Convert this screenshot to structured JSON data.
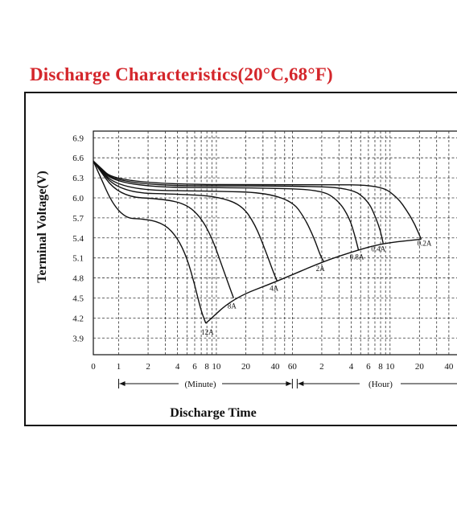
{
  "chart_data": {
    "type": "line",
    "title": "Discharge Characteristics(20°C,68°F)",
    "xlabel": "Discharge Time",
    "ylabel": "Terminal Voltage(V)",
    "x_scale": "log",
    "x_unit": "minutes",
    "xlim": [
      0.55,
      2800
    ],
    "ylim": [
      3.65,
      7.0
    ],
    "y_ticks": [
      "6.9",
      "6.6",
      "6.3",
      "6.0",
      "5.7",
      "5.4",
      "5.1",
      "4.8",
      "4.5",
      "4.2",
      "3.9"
    ],
    "minute_ticks": [
      "0",
      "1",
      "2",
      "4",
      "6",
      "8",
      "10",
      "20",
      "40",
      "60"
    ],
    "hour_ticks": [
      "2",
      "4",
      "6",
      "8",
      "10",
      "20",
      "40"
    ],
    "minute_section_label": "(Minute)",
    "hour_section_label": "(Hour)",
    "grid": true,
    "series": [
      {
        "name": "12A",
        "x": [
          0.55,
          1.0,
          2.0,
          3.0,
          4.0,
          5.0,
          6.0,
          7.0,
          7.8
        ],
        "y": [
          6.55,
          5.7,
          5.68,
          5.6,
          5.4,
          5.1,
          4.7,
          4.3,
          4.12
        ]
      },
      {
        "name": "8A",
        "x": [
          0.55,
          1.0,
          3.0,
          5.0,
          7.0,
          9.0,
          11.0,
          13.0,
          15.0
        ],
        "y": [
          6.55,
          6.02,
          5.98,
          5.9,
          5.7,
          5.4,
          5.05,
          4.75,
          4.5
        ]
      },
      {
        "name": "4A",
        "x": [
          0.55,
          1.0,
          5.0,
          10.0,
          18.0,
          25.0,
          32.0,
          38.0,
          42.0
        ],
        "y": [
          6.55,
          6.08,
          6.05,
          6.02,
          5.9,
          5.6,
          5.2,
          4.9,
          4.75
        ]
      },
      {
        "name": "2A",
        "x": [
          0.55,
          1.0,
          10.0,
          30.0,
          60.0,
          80.0,
          100.0,
          115.0,
          125.0
        ],
        "y": [
          6.55,
          6.12,
          6.1,
          6.08,
          5.95,
          5.7,
          5.4,
          5.15,
          5.05
        ]
      },
      {
        "name": "0.8A",
        "x": [
          0.55,
          1.0,
          30.0,
          120.0,
          180.0,
          230.0,
          260.0,
          285.0
        ],
        "y": [
          6.55,
          6.16,
          6.15,
          6.12,
          5.95,
          5.7,
          5.45,
          5.22
        ]
      },
      {
        "name": "0.4A",
        "x": [
          0.55,
          1.0,
          60.0,
          240.0,
          360.0,
          430.0,
          480.0,
          510.0
        ],
        "y": [
          6.55,
          6.18,
          6.18,
          6.15,
          5.95,
          5.7,
          5.5,
          5.32
        ]
      },
      {
        "name": "0.2A",
        "x": [
          0.55,
          1.0,
          120.0,
          480.0,
          720.0,
          900.0,
          1080.0,
          1250.0
        ],
        "y": [
          6.55,
          6.2,
          6.2,
          6.19,
          6.0,
          5.8,
          5.6,
          5.38
        ]
      }
    ],
    "endpoint_line": {
      "x": [
        7.8,
        15.0,
        42.0,
        125.0,
        285.0,
        510.0,
        1250.0
      ],
      "y": [
        4.12,
        4.5,
        4.75,
        5.05,
        5.22,
        5.32,
        5.38
      ]
    }
  }
}
